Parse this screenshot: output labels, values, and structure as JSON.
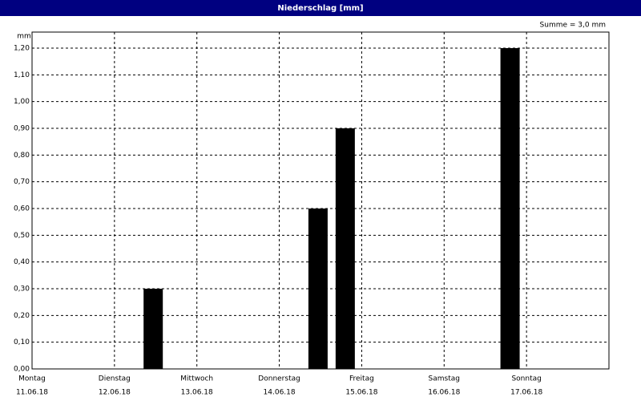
{
  "chart_data": {
    "type": "bar",
    "title": "Niederschlag [mm]",
    "y_unit": "mm",
    "annotation": "Summe = 3,0 mm",
    "x": [
      1.47,
      3.47,
      3.8,
      5.8
    ],
    "values": [
      0.3,
      0.6,
      0.9,
      1.2
    ],
    "color": "#000000",
    "xlim": [
      0,
      7
    ],
    "xticks": [
      {
        "value": 0,
        "label": "Montag",
        "date": "11.06.18"
      },
      {
        "value": 1,
        "label": "Dienstag",
        "date": "12.06.18"
      },
      {
        "value": 2,
        "label": "Mittwoch",
        "date": "13.06.18"
      },
      {
        "value": 3,
        "label": "Donnerstag",
        "date": "14.06.18"
      },
      {
        "value": 4,
        "label": "Freitag",
        "date": "15.06.18"
      },
      {
        "value": 5,
        "label": "Samstag",
        "date": "16.06.18"
      },
      {
        "value": 6,
        "label": "Sonntag",
        "date": "17.06.18"
      }
    ],
    "ylim": [
      0,
      1.26
    ],
    "yticks": [
      {
        "value": 0,
        "label": "0,00"
      },
      {
        "value": 0.1,
        "label": "0,10"
      },
      {
        "value": 0.2,
        "label": "0,20"
      },
      {
        "value": 0.3,
        "label": "0,30"
      },
      {
        "value": 0.4,
        "label": "0,40"
      },
      {
        "value": 0.5,
        "label": "0,50"
      },
      {
        "value": 0.6,
        "label": "0,60"
      },
      {
        "value": 0.7,
        "label": "0,70"
      },
      {
        "value": 0.8,
        "label": "0,80"
      },
      {
        "value": 0.9,
        "label": "0,90"
      },
      {
        "value": 1.0,
        "label": "1,00"
      },
      {
        "value": 1.1,
        "label": "1,10"
      },
      {
        "value": 1.2,
        "label": "1,20"
      }
    ],
    "grid": true
  }
}
